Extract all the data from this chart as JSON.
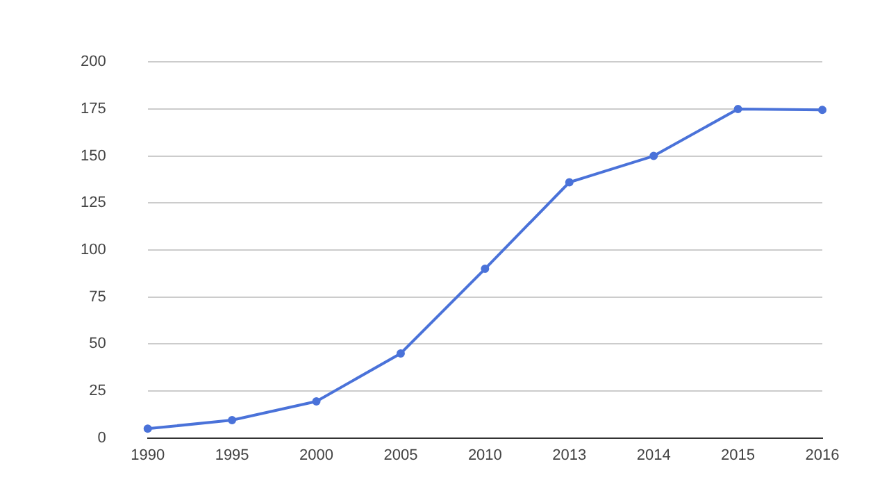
{
  "chart_data": {
    "type": "line",
    "categories": [
      "1990",
      "1995",
      "2000",
      "2005",
      "2010",
      "2013",
      "2014",
      "2015",
      "2016"
    ],
    "series": [
      {
        "color": "#4a72d9",
        "values": [
          5,
          9.5,
          19.5,
          45,
          90,
          136,
          150,
          175,
          174.5
        ]
      }
    ],
    "ylim": [
      0,
      200
    ],
    "yticks": [
      0,
      25,
      50,
      75,
      100,
      125,
      150,
      175,
      200
    ],
    "grid": "y",
    "legend": false,
    "marker": "circle",
    "line_style": "solid"
  }
}
